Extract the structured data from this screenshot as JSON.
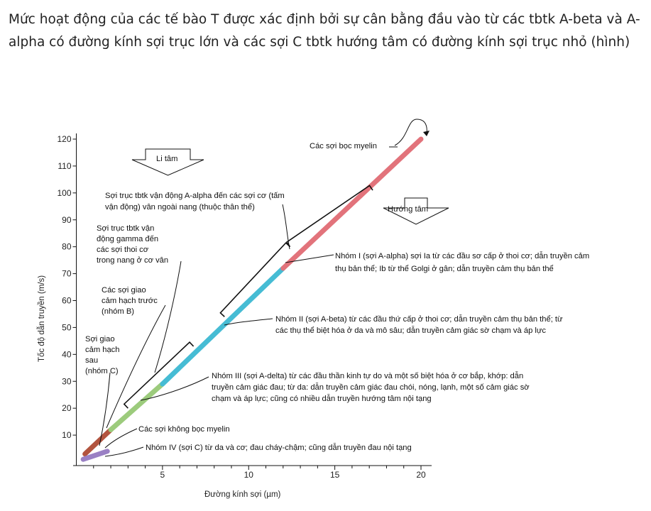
{
  "intro": "Mức hoạt động của các tế bào T được xác định bởi sự cân bằng đầu vào từ các tbtk A-beta và A-alpha có đường kính sợi trục lớn và các sợi C tbtk hướng tâm có đường kính sợi trục nhỏ (hình)",
  "colors": {
    "A_alpha": "#e2737b",
    "A_beta": "#46bcd4",
    "A_delta": "#9ccb7c",
    "B": "#b2543f",
    "C": "#9a80c4",
    "line": "#111111"
  },
  "chart_data": {
    "type": "line",
    "xlabel": "Đường kính sợi  (µm)",
    "ylabel": "Tốc độ dẫn truyền (m/s)",
    "xlim": [
      0,
      20
    ],
    "ylim": [
      0,
      120
    ],
    "xticks": [
      5,
      10,
      15,
      20
    ],
    "yticks": [
      10,
      20,
      30,
      40,
      50,
      60,
      70,
      80,
      90,
      100,
      110,
      120
    ],
    "grid": false,
    "series": [
      {
        "key": "B",
        "x": [
          0.5,
          2
        ],
        "y": [
          3,
          12
        ]
      },
      {
        "key": "A_delta",
        "x": [
          2,
          5
        ],
        "y": [
          12,
          29
        ]
      },
      {
        "key": "A_beta",
        "x": [
          5,
          12
        ],
        "y": [
          29,
          72
        ]
      },
      {
        "key": "A_alpha",
        "x": [
          12,
          20
        ],
        "y": [
          72,
          120
        ]
      },
      {
        "key": "C",
        "x": [
          0.4,
          1.8
        ],
        "y": [
          1,
          4
        ]
      }
    ],
    "brackets": [
      {
        "key": "gamma",
        "x": [
          3,
          6.8
        ],
        "y": [
          20,
          43
        ]
      },
      {
        "key": "beta",
        "x": [
          8.6,
          12.4
        ],
        "y": [
          54,
          80
        ]
      },
      {
        "key": "alpha",
        "x": [
          12.4,
          17.2
        ],
        "y": [
          80,
          101
        ]
      }
    ],
    "direction_labels": {
      "efferent": "Li tâm",
      "afferent": "Hướng tâm"
    },
    "annotations": {
      "myelinated": "Các sợi bọc myelin",
      "alpha_motor": [
        "Sợi trục tbtk vận động A-alpha đến các sợi cơ (tấm",
        "vận động) vân ngoài nang (thuộc thân thể)"
      ],
      "gamma_motor": [
        "Sợi trục tbtk vận",
        "động gamma đến",
        "các sợi thoi cơ",
        "trong nang ở cơ vân"
      ],
      "preganglionic": [
        "Các sợi giao",
        "cảm hạch trước",
        "(nhóm B)"
      ],
      "postganglionic": [
        "Sợi giao",
        "cảm hạch",
        "sau",
        "(nhóm C)"
      ],
      "group_I": [
        "Nhóm I (sợi A-alpha) sợi Ia từ các đầu sơ cấp ở thoi cơ; dẫn truyền cảm",
        "thụ bản thể; Ib từ thể Golgi ở gân; dẫn truyền cảm thụ bản thể"
      ],
      "group_II": [
        "Nhóm II (sợi A-beta) từ các đầu thứ cấp ở thoi cơ; dẫn truyền cảm thụ bản thể; từ",
        "các thụ thể biệt hóa ở da và mô sâu; dẫn truyền cảm giác sờ chạm và áp lực"
      ],
      "group_III": [
        "Nhóm III (sợi A-delta) từ các đầu thần kinh tự do và một số biệt hóa ở cơ bắp, khớp: dẫn",
        "truyền cảm giác đau; từ da: dẫn truyền cảm giác đau chói, nóng, lạnh, một số cảm giác sờ",
        "chạm và áp lực; cũng có nhiều dẫn truyền hướng tâm nội tạng"
      ],
      "unmyelinated": "Các sợi không bọc myelin",
      "group_IV": "Nhóm IV (sợi C) từ da và cơ; đau cháy-chậm; cũng dẫn truyền đau nội tạng"
    }
  }
}
